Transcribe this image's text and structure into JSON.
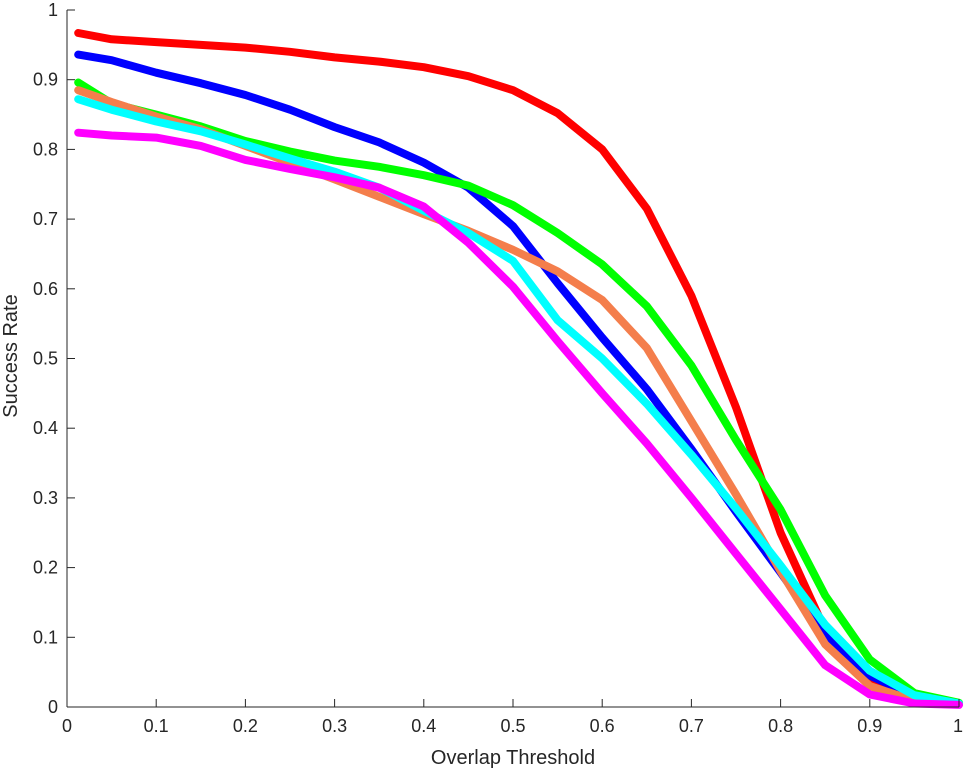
{
  "chart_data": {
    "type": "line",
    "title": "",
    "xlabel": "Overlap Threshold",
    "ylabel": "Success Rate",
    "xlim": [
      0,
      1
    ],
    "ylim": [
      0,
      1
    ],
    "xticks": [
      0,
      0.1,
      0.2,
      0.3,
      0.4,
      0.5,
      0.6,
      0.7,
      0.8,
      0.9,
      1
    ],
    "yticks": [
      0,
      0.1,
      0.2,
      0.3,
      0.4,
      0.5,
      0.6,
      0.7,
      0.8,
      0.9,
      1
    ],
    "xtick_labels": [
      "0",
      "0.1",
      "0.2",
      "0.3",
      "0.4",
      "0.5",
      "0.6",
      "0.7",
      "0.8",
      "0.9",
      "1"
    ],
    "ytick_labels": [
      "0",
      "0.1",
      "0.2",
      "0.3",
      "0.4",
      "0.5",
      "0.6",
      "0.7",
      "0.8",
      "0.9",
      "1"
    ],
    "grid": false,
    "legend": false,
    "x": [
      0.0125,
      0.05,
      0.1,
      0.15,
      0.2,
      0.25,
      0.3,
      0.35,
      0.4,
      0.45,
      0.5,
      0.55,
      0.6,
      0.65,
      0.7,
      0.75,
      0.8,
      0.85,
      0.9,
      0.95,
      1.0
    ],
    "series": [
      {
        "color": "#ff0000",
        "values": [
          0.967,
          0.958,
          0.954,
          0.95,
          0.946,
          0.94,
          0.932,
          0.926,
          0.918,
          0.905,
          0.885,
          0.852,
          0.8,
          0.715,
          0.59,
          0.43,
          0.25,
          0.11,
          0.04,
          0.012,
          0.004
        ]
      },
      {
        "color": "#0000ff",
        "values": [
          0.936,
          0.928,
          0.91,
          0.895,
          0.878,
          0.857,
          0.832,
          0.81,
          0.781,
          0.745,
          0.69,
          0.608,
          0.53,
          0.456,
          0.37,
          0.28,
          0.193,
          0.103,
          0.045,
          0.016,
          0.005
        ]
      },
      {
        "color": "#00ff00",
        "values": [
          0.896,
          0.866,
          0.85,
          0.833,
          0.812,
          0.797,
          0.784,
          0.775,
          0.763,
          0.748,
          0.72,
          0.68,
          0.635,
          0.575,
          0.49,
          0.383,
          0.283,
          0.16,
          0.068,
          0.02,
          0.006
        ]
      },
      {
        "color": "#f47e4c",
        "values": [
          0.885,
          0.868,
          0.847,
          0.829,
          0.805,
          0.781,
          0.757,
          0.732,
          0.707,
          0.683,
          0.656,
          0.625,
          0.584,
          0.515,
          0.41,
          0.305,
          0.195,
          0.09,
          0.03,
          0.009,
          0.004
        ]
      },
      {
        "color": "#00ffff",
        "values": [
          0.872,
          0.857,
          0.84,
          0.826,
          0.807,
          0.787,
          0.768,
          0.745,
          0.712,
          0.68,
          0.64,
          0.555,
          0.5,
          0.435,
          0.362,
          0.285,
          0.203,
          0.118,
          0.052,
          0.017,
          0.005
        ]
      },
      {
        "color": "#ff00ff",
        "values": [
          0.824,
          0.82,
          0.817,
          0.805,
          0.785,
          0.772,
          0.76,
          0.745,
          0.718,
          0.666,
          0.603,
          0.525,
          0.45,
          0.378,
          0.3,
          0.22,
          0.14,
          0.06,
          0.018,
          0.005,
          0.003
        ]
      }
    ]
  }
}
